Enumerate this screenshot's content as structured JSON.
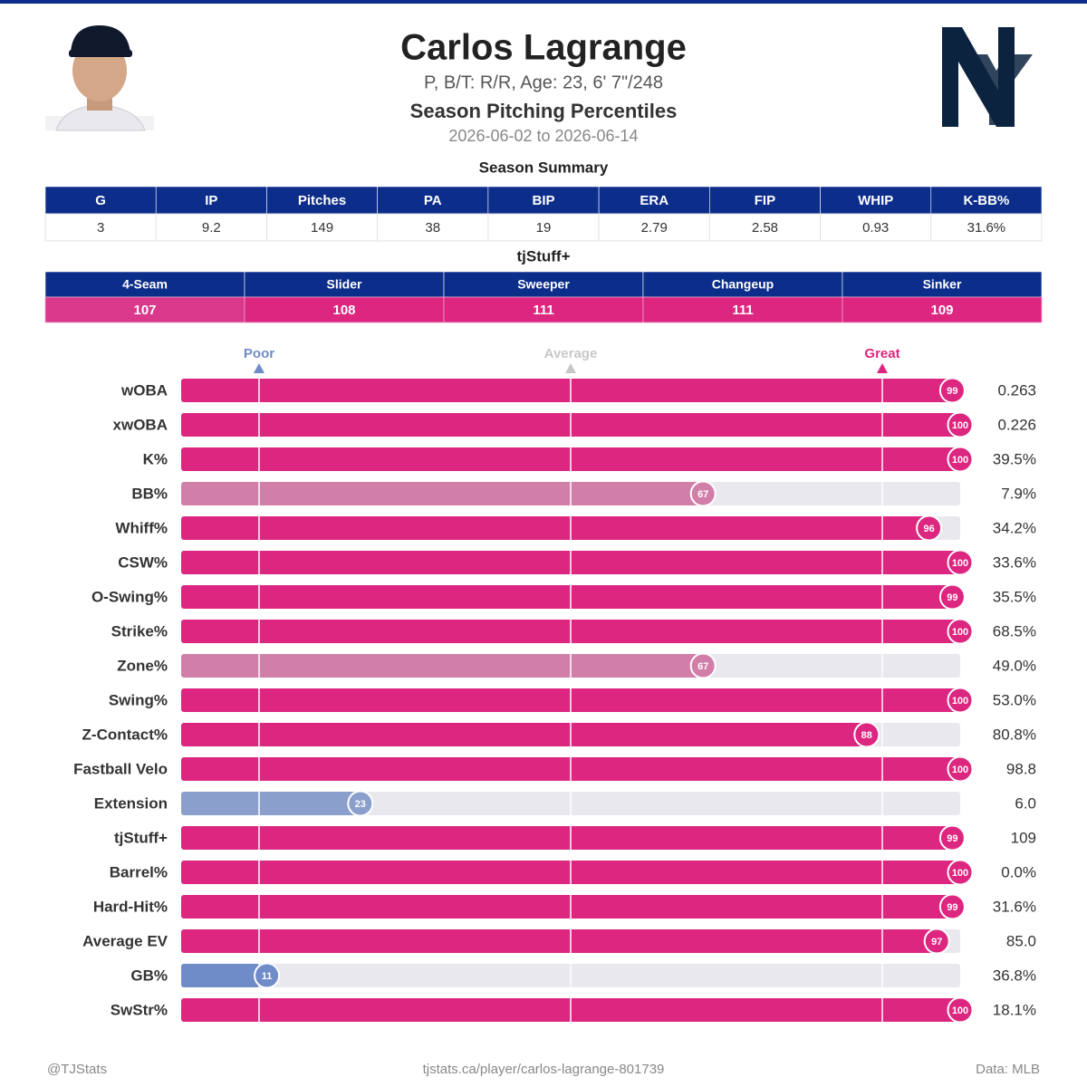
{
  "header": {
    "name": "Carlos Lagrange",
    "bio": "P, B/T: R/R, Age: 23, 6' 7\"/248",
    "subtitle": "Season Pitching Percentiles",
    "dates": "2026-06-02 to 2026-06-14"
  },
  "season_summary": {
    "title": "Season Summary",
    "columns": [
      "G",
      "IP",
      "Pitches",
      "PA",
      "BIP",
      "ERA",
      "FIP",
      "WHIP",
      "K-BB%"
    ],
    "rows": [
      [
        "3",
        "9.2",
        "149",
        "38",
        "19",
        "2.79",
        "2.58",
        "0.93",
        "31.6%"
      ]
    ]
  },
  "tjstuff": {
    "title": "tjStuff+",
    "columns": [
      "4-Seam",
      "Slider",
      "Sweeper",
      "Changeup",
      "Sinker"
    ],
    "rows": [
      [
        "107",
        "108",
        "111",
        "111",
        "109"
      ]
    ],
    "colors": [
      "#d9388b",
      "#dc267f",
      "#dc267f",
      "#dc267f",
      "#dc267f"
    ]
  },
  "chart_data": {
    "type": "percentile-bar",
    "categories": [
      "wOBA",
      "xwOBA",
      "K%",
      "BB%",
      "Whiff%",
      "CSW%",
      "O-Swing%",
      "Strike%",
      "Zone%",
      "Swing%",
      "Z-Contact%",
      "Fastball Velo",
      "Extension",
      "tjStuff+",
      "Barrel%",
      "Hard-Hit%",
      "Average EV",
      "GB%",
      "SwStr%"
    ],
    "values": [
      99,
      100,
      100,
      67,
      96,
      100,
      99,
      100,
      67,
      100,
      88,
      100,
      23,
      99,
      100,
      99,
      97,
      11,
      100
    ],
    "colors": [
      "#dc267f",
      "#dc267f",
      "#dc267f",
      "#d17fa8",
      "#dc267f",
      "#dc267f",
      "#dc267f",
      "#dc267f",
      "#d17fa8",
      "#dc267f",
      "#dc267f",
      "#dc267f",
      "#8a9fcb",
      "#dc267f",
      "#dc267f",
      "#dc267f",
      "#dc267f",
      "#6f8cc9",
      "#dc267f"
    ],
    "stats": [
      "0.263",
      "0.226",
      "39.5%",
      "7.9%",
      "34.2%",
      "33.6%",
      "35.5%",
      "68.5%",
      "49.0%",
      "53.0%",
      "80.8%",
      "98.8",
      "6.0",
      "109",
      "0.0%",
      "31.6%",
      "85.0",
      "36.8%",
      "18.1%"
    ],
    "xlim": [
      0,
      100
    ],
    "xticks": [
      {
        "value": 10,
        "label": "Poor"
      },
      {
        "value": 50,
        "label": "Average"
      },
      {
        "value": 90,
        "label": "Great"
      }
    ],
    "xtick_colors": [
      "#6f8cc9",
      "#c8c8c8",
      "#dc267f"
    ],
    "track_color": "#e8e8ee"
  },
  "footer": {
    "left": "@TJStats",
    "center": "tjstats.ca/player/carlos-lagrange-801739",
    "right": "Data: MLB"
  }
}
